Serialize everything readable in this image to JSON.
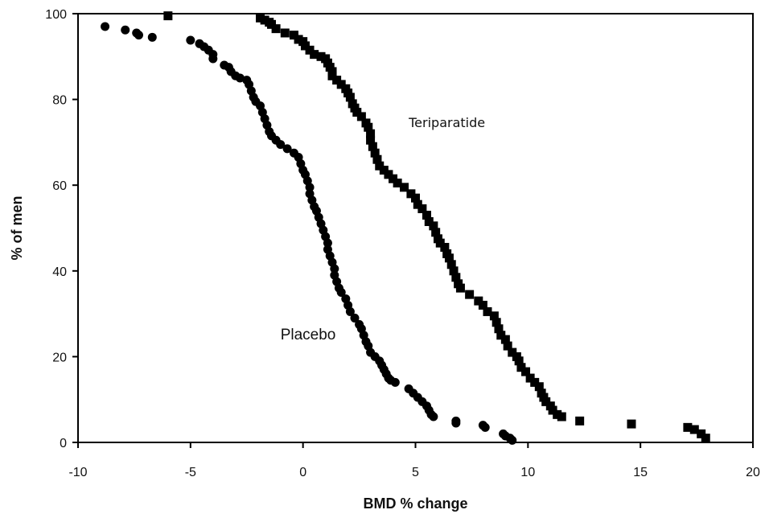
{
  "chart_data": {
    "type": "scatter",
    "title": "",
    "xlabel": "BMD % change",
    "ylabel": "% of men",
    "xlim": [
      -10,
      20
    ],
    "ylim": [
      0,
      100
    ],
    "xticks": [
      -10,
      -5,
      0,
      5,
      10,
      15,
      20
    ],
    "yticks": [
      0,
      20,
      40,
      60,
      80,
      100
    ],
    "grid": false,
    "legend": "none",
    "series": [
      {
        "marker": "circle",
        "color": "#000000",
        "points": [
          [
            -8.8,
            97.0
          ],
          [
            -7.9,
            96.2
          ],
          [
            -7.4,
            95.5
          ],
          [
            -7.3,
            95.0
          ],
          [
            -6.7,
            94.5
          ],
          [
            -5.0,
            93.8
          ],
          [
            -4.6,
            93.0
          ],
          [
            -4.4,
            92.3
          ],
          [
            -4.2,
            91.5
          ],
          [
            -4.0,
            90.5
          ],
          [
            -4.0,
            89.5
          ],
          [
            -3.5,
            88.0
          ],
          [
            -3.3,
            87.5
          ],
          [
            -3.2,
            86.5
          ],
          [
            -3.0,
            85.5
          ],
          [
            -2.8,
            85.0
          ],
          [
            -2.5,
            84.5
          ],
          [
            -2.4,
            83.5
          ],
          [
            -2.3,
            82.0
          ],
          [
            -2.2,
            80.5
          ],
          [
            -2.1,
            79.5
          ],
          [
            -1.9,
            78.5
          ],
          [
            -1.8,
            77.0
          ],
          [
            -1.7,
            75.5
          ],
          [
            -1.6,
            74.0
          ],
          [
            -1.5,
            72.5
          ],
          [
            -1.4,
            71.5
          ],
          [
            -1.2,
            70.5
          ],
          [
            -1.0,
            69.5
          ],
          [
            -0.7,
            68.5
          ],
          [
            -0.4,
            67.5
          ],
          [
            -0.2,
            66.5
          ],
          [
            -0.1,
            65.0
          ],
          [
            0.0,
            63.5
          ],
          [
            0.1,
            62.5
          ],
          [
            0.2,
            61.0
          ],
          [
            0.3,
            59.5
          ],
          [
            0.3,
            58.0
          ],
          [
            0.4,
            56.5
          ],
          [
            0.5,
            55.0
          ],
          [
            0.6,
            54.0
          ],
          [
            0.7,
            52.5
          ],
          [
            0.8,
            51.0
          ],
          [
            0.9,
            49.5
          ],
          [
            1.0,
            48.0
          ],
          [
            1.1,
            46.5
          ],
          [
            1.1,
            45.0
          ],
          [
            1.2,
            43.5
          ],
          [
            1.3,
            42.0
          ],
          [
            1.4,
            40.5
          ],
          [
            1.4,
            39.0
          ],
          [
            1.5,
            37.5
          ],
          [
            1.6,
            36.0
          ],
          [
            1.7,
            35.0
          ],
          [
            1.9,
            33.5
          ],
          [
            2.0,
            32.0
          ],
          [
            2.1,
            30.5
          ],
          [
            2.3,
            29.0
          ],
          [
            2.5,
            27.5
          ],
          [
            2.6,
            26.5
          ],
          [
            2.7,
            25.0
          ],
          [
            2.8,
            23.5
          ],
          [
            2.9,
            22.5
          ],
          [
            3.0,
            21.0
          ],
          [
            3.2,
            20.0
          ],
          [
            3.4,
            19.0
          ],
          [
            3.5,
            18.0
          ],
          [
            3.6,
            17.0
          ],
          [
            3.7,
            16.0
          ],
          [
            3.8,
            15.0
          ],
          [
            3.9,
            14.5
          ],
          [
            4.1,
            14.0
          ],
          [
            4.7,
            12.5
          ],
          [
            4.9,
            11.5
          ],
          [
            5.1,
            10.5
          ],
          [
            5.3,
            9.5
          ],
          [
            5.5,
            8.5
          ],
          [
            5.6,
            7.5
          ],
          [
            5.7,
            6.5
          ],
          [
            5.8,
            6.0
          ],
          [
            6.8,
            5.0
          ],
          [
            6.8,
            4.5
          ],
          [
            8.0,
            4.0
          ],
          [
            8.1,
            3.5
          ],
          [
            8.9,
            2.0
          ],
          [
            9.0,
            1.5
          ],
          [
            9.2,
            1.0
          ],
          [
            9.3,
            0.5
          ]
        ]
      },
      {
        "marker": "square",
        "color": "#000000",
        "points": [
          [
            -6.0,
            99.5
          ],
          [
            -1.9,
            99.0
          ],
          [
            -1.7,
            98.5
          ],
          [
            -1.5,
            98.0
          ],
          [
            -1.4,
            97.5
          ],
          [
            -1.2,
            96.5
          ],
          [
            -0.8,
            95.5
          ],
          [
            -0.4,
            95.0
          ],
          [
            -0.2,
            94.0
          ],
          [
            0.0,
            93.5
          ],
          [
            0.1,
            92.5
          ],
          [
            0.3,
            91.5
          ],
          [
            0.5,
            90.5
          ],
          [
            0.8,
            90.0
          ],
          [
            1.0,
            89.5
          ],
          [
            1.1,
            88.5
          ],
          [
            1.2,
            87.5
          ],
          [
            1.3,
            86.5
          ],
          [
            1.3,
            85.5
          ],
          [
            1.5,
            84.5
          ],
          [
            1.7,
            83.5
          ],
          [
            1.9,
            82.5
          ],
          [
            2.0,
            81.5
          ],
          [
            2.1,
            80.5
          ],
          [
            2.2,
            79.0
          ],
          [
            2.3,
            78.0
          ],
          [
            2.4,
            77.0
          ],
          [
            2.6,
            76.0
          ],
          [
            2.8,
            74.5
          ],
          [
            2.9,
            73.5
          ],
          [
            3.0,
            72.0
          ],
          [
            3.0,
            70.5
          ],
          [
            3.1,
            69.0
          ],
          [
            3.2,
            67.5
          ],
          [
            3.3,
            66.0
          ],
          [
            3.4,
            64.5
          ],
          [
            3.6,
            63.5
          ],
          [
            3.8,
            62.5
          ],
          [
            4.0,
            61.5
          ],
          [
            4.2,
            60.5
          ],
          [
            4.5,
            59.5
          ],
          [
            4.8,
            58.0
          ],
          [
            5.0,
            57.0
          ],
          [
            5.1,
            55.5
          ],
          [
            5.3,
            54.5
          ],
          [
            5.5,
            53.0
          ],
          [
            5.6,
            51.5
          ],
          [
            5.8,
            50.5
          ],
          [
            5.9,
            49.0
          ],
          [
            6.0,
            47.5
          ],
          [
            6.1,
            46.5
          ],
          [
            6.3,
            45.5
          ],
          [
            6.4,
            44.0
          ],
          [
            6.5,
            43.0
          ],
          [
            6.6,
            41.5
          ],
          [
            6.7,
            40.0
          ],
          [
            6.8,
            38.5
          ],
          [
            6.9,
            37.0
          ],
          [
            7.0,
            36.0
          ],
          [
            7.4,
            34.5
          ],
          [
            7.8,
            33.0
          ],
          [
            8.0,
            32.0
          ],
          [
            8.2,
            30.5
          ],
          [
            8.5,
            29.5
          ],
          [
            8.6,
            28.0
          ],
          [
            8.7,
            26.5
          ],
          [
            8.8,
            25.0
          ],
          [
            9.0,
            24.0
          ],
          [
            9.1,
            22.5
          ],
          [
            9.3,
            21.0
          ],
          [
            9.5,
            20.0
          ],
          [
            9.6,
            19.0
          ],
          [
            9.7,
            17.5
          ],
          [
            9.9,
            16.5
          ],
          [
            10.1,
            15.0
          ],
          [
            10.3,
            14.0
          ],
          [
            10.5,
            13.0
          ],
          [
            10.6,
            11.5
          ],
          [
            10.7,
            10.5
          ],
          [
            10.8,
            9.5
          ],
          [
            11.0,
            8.5
          ],
          [
            11.1,
            7.5
          ],
          [
            11.3,
            6.5
          ],
          [
            11.5,
            6.0
          ],
          [
            12.3,
            5.0
          ],
          [
            14.6,
            4.3
          ],
          [
            17.1,
            3.5
          ],
          [
            17.4,
            3.0
          ],
          [
            17.7,
            2.0
          ],
          [
            17.9,
            1.0
          ]
        ]
      }
    ],
    "annotations": [
      {
        "text": "Teriparatide",
        "x": 4.7,
        "y": 73.5
      },
      {
        "text": "Placebo",
        "x": -1.0,
        "y": 24.0
      }
    ]
  }
}
